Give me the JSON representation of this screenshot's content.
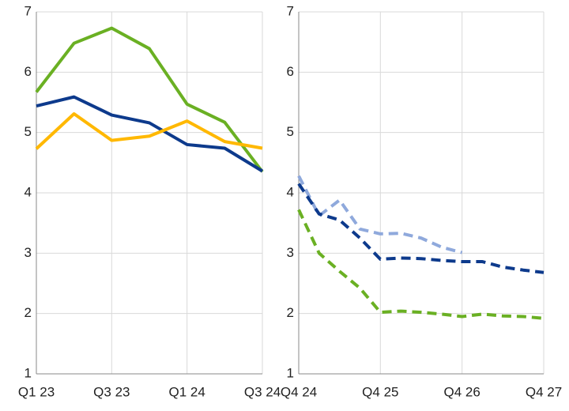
{
  "chart_data": [
    {
      "type": "line",
      "categories": [
        "Q1 23",
        null,
        "Q3 23",
        null,
        "Q1 24",
        null,
        "Q3 24"
      ],
      "ylim": [
        1,
        7
      ],
      "yticks": [
        1,
        2,
        3,
        4,
        5,
        6,
        7
      ],
      "grid": true,
      "series": [
        {
          "color": "#6ab023",
          "dashed": false,
          "values": [
            5.67,
            6.48,
            6.73,
            6.39,
            5.47,
            5.17,
            4.35
          ]
        },
        {
          "color": "#0d3a8c",
          "dashed": false,
          "values": [
            5.44,
            5.59,
            5.29,
            5.16,
            4.8,
            4.74,
            4.36
          ]
        },
        {
          "color": "#ffb800",
          "dashed": false,
          "values": [
            4.73,
            5.31,
            4.87,
            4.94,
            5.19,
            4.85,
            4.74
          ]
        }
      ]
    },
    {
      "type": "line",
      "categories": [
        "Q4 24",
        null,
        null,
        null,
        "Q4 25",
        null,
        null,
        null,
        "Q4 26",
        null,
        null,
        null,
        "Q4 27"
      ],
      "ylim": [
        1,
        7
      ],
      "yticks": [
        1,
        2,
        3,
        4,
        5,
        6,
        7
      ],
      "grid": true,
      "series": [
        {
          "color": "#8fa9dc",
          "dashed": true,
          "values": [
            4.28,
            3.62,
            3.88,
            3.4,
            3.32,
            3.33,
            3.25,
            3.1,
            3.01,
            null,
            null,
            null,
            null
          ]
        },
        {
          "color": "#0d3a8c",
          "dashed": true,
          "values": [
            4.15,
            3.65,
            3.55,
            3.25,
            2.9,
            2.92,
            2.91,
            2.88,
            2.86,
            2.86,
            2.77,
            2.72,
            2.68
          ]
        },
        {
          "color": "#6ab023",
          "dashed": true,
          "values": [
            3.72,
            3.0,
            2.7,
            2.42,
            2.02,
            2.04,
            2.02,
            1.99,
            1.95,
            1.99,
            1.96,
            1.95,
            1.92
          ]
        }
      ]
    }
  ]
}
